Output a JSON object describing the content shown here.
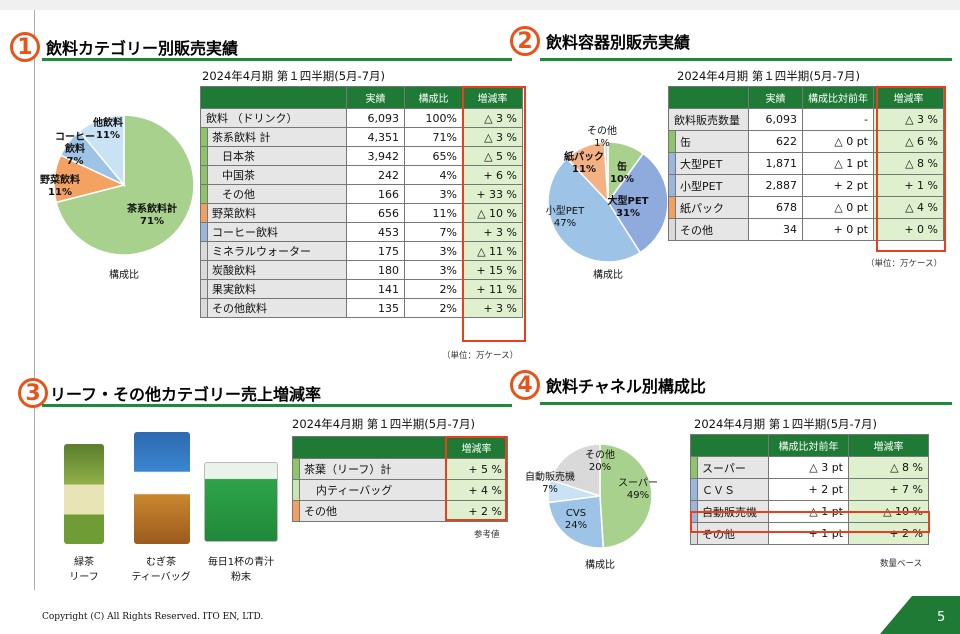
{
  "sections": {
    "s1": {
      "num": "1",
      "title": "飲料カテゴリー別販売実績",
      "period": "2024年4月期 第１四半期(5月-7月)",
      "unit": "（単位：万ケース）"
    },
    "s2": {
      "num": "2",
      "title": "飲料容器別販売実績",
      "period": "2024年4月期 第１四半期(5月-7月)",
      "unit": "（単位：万ケース）"
    },
    "s3": {
      "num": "3",
      "title": "リーフ・その他カテゴリー売上増減率",
      "period": "2024年4月期 第１四半期(5月-7月)",
      "unit": "参考値"
    },
    "s4": {
      "num": "4",
      "title": "飲料チャネル別構成比",
      "period": "2024年4月期 第１四半期(5月-7月)",
      "unit": "数量ベース"
    }
  },
  "pie1": {
    "caption": "構成比",
    "slices": [
      {
        "name": "茶系飲料計",
        "pct": "71%",
        "value": 71,
        "color": "#a9d18e"
      },
      {
        "name": "野菜飲料",
        "pct": "11%",
        "value": 11,
        "color": "#f4a261"
      },
      {
        "name": "コーヒー飲料",
        "pct": "7%",
        "value": 7,
        "color": "#9dc3e6"
      },
      {
        "name": "他飲料",
        "pct": "11%",
        "value": 11,
        "color": "#c9e3f5"
      }
    ]
  },
  "table1": {
    "headers": [
      "実績",
      "構成比",
      "増減率"
    ],
    "rows": [
      {
        "label": "飲料 （ドリンク）",
        "v": "6,093",
        "r": "100%",
        "c": "△ 3 %",
        "indent": 0,
        "accent": "wht"
      },
      {
        "label": "茶系飲料 計",
        "v": "4,351",
        "r": "71%",
        "c": "△ 3 %",
        "indent": 1,
        "accent": "green"
      },
      {
        "label": "日本茶",
        "v": "3,942",
        "r": "65%",
        "c": "△ 5 %",
        "indent": 2,
        "accent": "green"
      },
      {
        "label": "中国茶",
        "v": "242",
        "r": "4%",
        "c": "+ 6 %",
        "indent": 2,
        "accent": "green"
      },
      {
        "label": "その他",
        "v": "166",
        "r": "3%",
        "c": "+ 33 %",
        "indent": 2,
        "accent": "green"
      },
      {
        "label": "野菜飲料",
        "v": "656",
        "r": "11%",
        "c": "△ 10 %",
        "indent": 1,
        "accent": "orange"
      },
      {
        "label": "コーヒー飲料",
        "v": "453",
        "r": "7%",
        "c": "+ 3 %",
        "indent": 1,
        "accent": "blue"
      },
      {
        "label": "ミネラルウォーター",
        "v": "175",
        "r": "3%",
        "c": "△ 11 %",
        "indent": 1,
        "accent": "gray"
      },
      {
        "label": "炭酸飲料",
        "v": "180",
        "r": "3%",
        "c": "+ 15 %",
        "indent": 1,
        "accent": "gray"
      },
      {
        "label": "果実飲料",
        "v": "141",
        "r": "2%",
        "c": "+ 11 %",
        "indent": 1,
        "accent": "gray"
      },
      {
        "label": "その他飲料",
        "v": "135",
        "r": "2%",
        "c": "+ 3 %",
        "indent": 1,
        "accent": "gray"
      }
    ]
  },
  "pie2": {
    "caption": "構成比",
    "slices": [
      {
        "name": "缶",
        "pct": "10%",
        "value": 10,
        "color": "#a9d18e"
      },
      {
        "name": "大型PET",
        "pct": "31%",
        "value": 31,
        "color": "#8faadc"
      },
      {
        "name": "小型PET",
        "pct": "47%",
        "value": 47,
        "color": "#9dc3e6"
      },
      {
        "name": "紙パック",
        "pct": "11%",
        "value": 11,
        "color": "#f4b183"
      },
      {
        "name": "その他",
        "pct": "1%",
        "value": 1,
        "color": "#d9d9d9"
      }
    ]
  },
  "table2": {
    "headers": [
      "実績",
      "構成比対前年",
      "増減率"
    ],
    "rows": [
      {
        "label": "飲料販売数量",
        "v": "6,093",
        "r": "-",
        "c": "△ 3 %",
        "accent": "wht"
      },
      {
        "label": "缶",
        "v": "622",
        "r": "△ 0 pt",
        "c": "△ 6 %",
        "accent": "green"
      },
      {
        "label": "大型PET",
        "v": "1,871",
        "r": "△ 1 pt",
        "c": "△ 8 %",
        "accent": "blue"
      },
      {
        "label": "小型PET",
        "v": "2,887",
        "r": "+ 2 pt",
        "c": "+ 1 %",
        "accent": "blue"
      },
      {
        "label": "紙パック",
        "v": "678",
        "r": "△ 0 pt",
        "c": "△ 4 %",
        "accent": "orange"
      },
      {
        "label": "その他",
        "v": "34",
        "r": "+ 0 pt",
        "c": "+ 0 %",
        "accent": "gray"
      }
    ]
  },
  "products": [
    {
      "caption1": "緑茶",
      "caption2": "リーフ",
      "name": "green-tea-leaf"
    },
    {
      "caption1": "むぎ茶",
      "caption2": "ティーバッグ",
      "name": "barley-tea-bag"
    },
    {
      "caption1": "毎日1杯の青汁",
      "caption2": "粉末",
      "name": "aojiru-powder"
    }
  ],
  "table3": {
    "headers": [
      "増減率"
    ],
    "rows": [
      {
        "label": "茶葉（リーフ）計",
        "c": "+ 5 %",
        "indent": 0,
        "accent": "green"
      },
      {
        "label": "内ティーバッグ",
        "c": "+ 4 %",
        "indent": 1,
        "accent": "lgreen"
      },
      {
        "label": "その他",
        "c": "+ 2 %",
        "indent": 0,
        "accent": "orange"
      }
    ]
  },
  "pie4": {
    "caption": "構成比",
    "slices": [
      {
        "name": "スーパー",
        "pct": "49%",
        "value": 49,
        "color": "#a9d18e"
      },
      {
        "name": "CVS",
        "pct": "24%",
        "value": 24,
        "color": "#9dc3e6"
      },
      {
        "name": "自動販売機",
        "pct": "7%",
        "value": 7,
        "color": "#c9e3f5"
      },
      {
        "name": "その他",
        "pct": "20%",
        "value": 20,
        "color": "#d9d9d9"
      }
    ]
  },
  "table4": {
    "headers": [
      "構成比対前年",
      "増減率"
    ],
    "rows": [
      {
        "label": "スーパー",
        "r": "△ 3 pt",
        "c": "△ 8 %",
        "accent": "green"
      },
      {
        "label": "ＣＶＳ",
        "r": "+ 2 pt",
        "c": "+ 7 %",
        "accent": "blue"
      },
      {
        "label": "自動販売機",
        "r": "△ 1 pt",
        "c": "△ 10 %",
        "accent": "blue"
      },
      {
        "label": "その他",
        "r": "+ 1 pt",
        "c": "+ 2 %",
        "accent": "gray"
      }
    ]
  },
  "footer": {
    "copyright": "Copyright (C) All Rights Reserved. ITO EN, LTD.",
    "page": "5"
  }
}
